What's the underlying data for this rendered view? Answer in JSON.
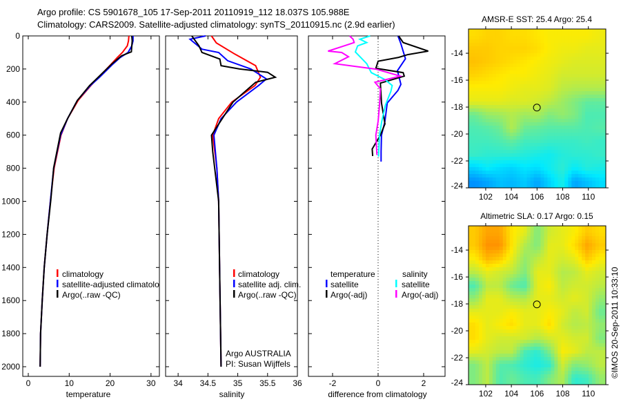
{
  "title": {
    "line1": "Argo profile: CS 5901678_105 17-Sep-2011 20110919_112 18.037S 105.988E",
    "line2": "Climatology: CARS2009. Satellite-adjusted climatology: synTS_20110915.nc (2.9d earlier)"
  },
  "credit": "©IMOS 20-Sep-2011 10:33:10",
  "colors": {
    "climatology": "#ff0000",
    "satellite": "#0000ff",
    "argo": "#000000",
    "sal_satellite": "#00ffff",
    "sal_argo": "#ff00ff"
  },
  "chart_data": [
    {
      "type": "line",
      "name": "temperature-profile",
      "xlabel": "temperature",
      "ylabel": "",
      "xlim": [
        -1.35,
        32.05
      ],
      "ylim": [
        0,
        2117
      ],
      "y_reversed": true,
      "xticks": [
        0,
        10,
        20,
        30
      ],
      "yticks": [
        0,
        200,
        400,
        600,
        800,
        1000,
        1200,
        1400,
        1600,
        1800,
        2000
      ],
      "legend": [
        "climatology",
        "satellite-adjusted climatology",
        "Argo(..raw -QC)"
      ],
      "series": [
        {
          "name": "climatology",
          "color": "climatology",
          "depth": [
            0,
            30,
            60,
            100,
            130,
            170,
            250,
            300,
            390,
            500,
            600,
            800,
            1000,
            1200,
            1400,
            1600,
            1800,
            2000
          ],
          "values": [
            24.6,
            24.5,
            24.2,
            23.0,
            21.8,
            20.3,
            17.2,
            15.3,
            12.2,
            9.6,
            8.0,
            6.3,
            5.4,
            4.6,
            3.9,
            3.4,
            3.0,
            2.9
          ]
        },
        {
          "name": "satellite-adjusted climatology",
          "color": "satellite",
          "depth": [
            0,
            30,
            60,
            100,
            130,
            170,
            250,
            300,
            390,
            500,
            600,
            800,
            1000,
            1200,
            1400,
            1600,
            1800,
            2000
          ],
          "values": [
            25.6,
            25.6,
            25.3,
            24.4,
            22.5,
            20.7,
            17.4,
            15.2,
            12.0,
            9.6,
            7.9,
            6.2,
            5.4,
            4.6,
            3.9,
            3.4,
            3.0,
            2.9
          ]
        },
        {
          "name": "Argo(..raw -QC)",
          "color": "argo",
          "depth": [
            0,
            30,
            60,
            96,
            120,
            168,
            252,
            300,
            390,
            500,
            587,
            797,
            994,
            1200,
            1400,
            1600,
            1800,
            2000
          ],
          "values": [
            25.3,
            25.4,
            25.3,
            25.2,
            22.8,
            20.5,
            17.0,
            15.0,
            12.0,
            9.6,
            7.9,
            6.2,
            5.5,
            4.6,
            3.9,
            3.4,
            3.0,
            2.9
          ]
        }
      ]
    },
    {
      "type": "line",
      "name": "salinity-profile",
      "xlabel": "salinity",
      "xlim": [
        33.79,
        36.0
      ],
      "ylim": [
        0,
        2117
      ],
      "y_reversed": true,
      "xticks": [
        34,
        34.5,
        35,
        35.5,
        36
      ],
      "legend": [
        "climatology",
        "satellite adj. clim.",
        "Argo(..raw -QC)"
      ],
      "annotations": [
        "Argo AUSTRALIA",
        "PI: Susan Wijffels"
      ],
      "series": [
        {
          "name": "climatology",
          "color": "climatology",
          "depth": [
            0,
            42,
            110,
            180,
            250,
            300,
            400,
            500,
            600,
            800,
            1000,
            1500,
            2000
          ],
          "values": [
            34.56,
            34.64,
            34.95,
            35.3,
            35.38,
            35.29,
            34.9,
            34.68,
            34.58,
            34.65,
            34.68,
            34.7,
            34.72
          ]
        },
        {
          "name": "satellite adj. clim.",
          "color": "satellite",
          "depth": [
            0,
            20,
            80,
            100,
            150,
            200,
            260,
            300,
            400,
            500,
            600,
            800,
            1000,
            1500,
            2000
          ],
          "values": [
            34.46,
            34.2,
            34.4,
            34.68,
            34.83,
            35.22,
            35.48,
            35.35,
            34.98,
            34.72,
            34.6,
            34.65,
            34.68,
            34.7,
            34.72
          ]
        },
        {
          "name": "Argo(..raw -QC)",
          "color": "argo",
          "depth": [
            0,
            60,
            100,
            140,
            180,
            200,
            220,
            250,
            280,
            400,
            600,
            700,
            1000,
            1500,
            2000
          ],
          "values": [
            34.23,
            34.35,
            34.4,
            34.7,
            34.72,
            35.03,
            35.5,
            35.63,
            35.3,
            34.92,
            34.56,
            34.58,
            34.68,
            34.7,
            34.72
          ]
        }
      ]
    },
    {
      "type": "line",
      "name": "difference-profile",
      "xlabel": "difference from climatology",
      "xlim": [
        -3.06,
        2.94
      ],
      "ylim": [
        0,
        2117
      ],
      "y_reversed": true,
      "xticks": [
        -2,
        0,
        2
      ],
      "zero_line": 0,
      "legend": {
        "temperature_title": "temperature",
        "salinity_title": "salinity",
        "entries": [
          "satellite",
          "Argo(-adj)",
          "satellite",
          "Argo(-adj)"
        ]
      },
      "series": [
        {
          "name": "temperature satellite",
          "color": "satellite",
          "depth": [
            0,
            42,
            138,
            210,
            293,
            330,
            406,
            516,
            600,
            700,
            760
          ],
          "values": [
            0.87,
            0.99,
            1.2,
            0.85,
            1.0,
            0.87,
            0.4,
            0.3,
            0.15,
            0.13,
            0.13
          ]
        },
        {
          "name": "temperature Argo(-adj)",
          "color": "argo",
          "depth": [
            0,
            40,
            92,
            113,
            130,
            153,
            196,
            222,
            243,
            285,
            406,
            532,
            600,
            684,
            726
          ],
          "values": [
            0.9,
            1.1,
            2.2,
            1.3,
            0.9,
            0.0,
            -0.1,
            1.1,
            1.15,
            0.1,
            0.15,
            0.3,
            0.1,
            -0.26,
            -0.24
          ]
        },
        {
          "name": "salinity satellite",
          "color": "sal_satellite",
          "depth": [
            0,
            20,
            40,
            60,
            97,
            168,
            222,
            264,
            300,
            335,
            419,
            516,
            600,
            730
          ],
          "values": [
            -0.35,
            -0.8,
            -0.5,
            -0.9,
            -1.0,
            -0.5,
            -0.3,
            0.3,
            0.62,
            0.56,
            0.32,
            0.16,
            0.06,
            0.02
          ]
        },
        {
          "name": "salinity Argo(-adj)",
          "color": "sal_argo",
          "depth": [
            0,
            20,
            40,
            63,
            92,
            100,
            126,
            168,
            201,
            243,
            280,
            320,
            419,
            516,
            600,
            720
          ],
          "values": [
            -1.25,
            -1.1,
            -1.05,
            -1.55,
            -2.2,
            -1.6,
            -1.3,
            -1.9,
            -0.1,
            0.97,
            -0.14,
            0.1,
            0.06,
            0.0,
            -0.1,
            -0.05
          ]
        }
      ]
    },
    {
      "type": "heatmap",
      "name": "sst-map",
      "title": "AMSR-E SST: 25.4 Argo: 25.4",
      "xlim": [
        100.66,
        111.36
      ],
      "ylim": [
        -24,
        -12.2
      ],
      "xticks": [
        102,
        104,
        106,
        108,
        110
      ],
      "yticks": [
        -14,
        -16,
        -18,
        -20,
        -22,
        -24
      ],
      "marker": {
        "lon": 105.988,
        "lat": -18.037
      },
      "colormap": "jet",
      "grid_normalized": [
        [
          0.64,
          0.65,
          0.65,
          0.64,
          0.64,
          0.63,
          0.62,
          0.62,
          0.62,
          0.62,
          0.61
        ],
        [
          0.66,
          0.66,
          0.65,
          0.65,
          0.65,
          0.64,
          0.62,
          0.61,
          0.61,
          0.6,
          0.6
        ],
        [
          0.67,
          0.66,
          0.65,
          0.64,
          0.63,
          0.62,
          0.61,
          0.6,
          0.59,
          0.59,
          0.59
        ],
        [
          0.65,
          0.64,
          0.63,
          0.62,
          0.62,
          0.61,
          0.6,
          0.58,
          0.58,
          0.58,
          0.58
        ],
        [
          0.62,
          0.62,
          0.62,
          0.61,
          0.6,
          0.6,
          0.59,
          0.56,
          0.55,
          0.55,
          0.55
        ],
        [
          0.6,
          0.6,
          0.6,
          0.59,
          0.59,
          0.58,
          0.56,
          0.53,
          0.5,
          0.47,
          0.47
        ],
        [
          0.48,
          0.52,
          0.53,
          0.55,
          0.53,
          0.54,
          0.5,
          0.52,
          0.5,
          0.45,
          0.45
        ],
        [
          0.45,
          0.46,
          0.48,
          0.55,
          0.48,
          0.47,
          0.46,
          0.46,
          0.46,
          0.45,
          0.46
        ],
        [
          0.44,
          0.44,
          0.45,
          0.47,
          0.44,
          0.44,
          0.43,
          0.43,
          0.43,
          0.44,
          0.43
        ],
        [
          0.43,
          0.42,
          0.42,
          0.42,
          0.41,
          0.4,
          0.39,
          0.41,
          0.42,
          0.42,
          0.43
        ],
        [
          0.35,
          0.38,
          0.36,
          0.35,
          0.37,
          0.36,
          0.39,
          0.42,
          0.38,
          0.41,
          0.4
        ],
        [
          0.28,
          0.3,
          0.33,
          0.32,
          0.34,
          0.3,
          0.35,
          0.4,
          0.3,
          0.33,
          0.36
        ]
      ]
    },
    {
      "type": "heatmap",
      "name": "sla-map",
      "title": "Altimetric SLA: 0.17 Argo: 0.15",
      "xlim": [
        100.66,
        111.36
      ],
      "ylim": [
        -24,
        -12.2
      ],
      "xticks": [
        102,
        104,
        106,
        108,
        110
      ],
      "yticks": [
        -14,
        -16,
        -18,
        -20,
        -22,
        -24
      ],
      "marker": {
        "lon": 105.988,
        "lat": -18.037
      },
      "colormap": "jet",
      "grid_normalized": [
        [
          0.66,
          0.7,
          0.7,
          0.63,
          0.6,
          0.5,
          0.58,
          0.6,
          0.62,
          0.66,
          0.64
        ],
        [
          0.66,
          0.72,
          0.72,
          0.63,
          0.55,
          0.5,
          0.6,
          0.6,
          0.64,
          0.7,
          0.66
        ],
        [
          0.62,
          0.68,
          0.66,
          0.6,
          0.52,
          0.56,
          0.6,
          0.58,
          0.6,
          0.66,
          0.62
        ],
        [
          0.56,
          0.6,
          0.58,
          0.56,
          0.5,
          0.6,
          0.6,
          0.55,
          0.56,
          0.6,
          0.58
        ],
        [
          0.45,
          0.56,
          0.56,
          0.48,
          0.45,
          0.6,
          0.62,
          0.56,
          0.58,
          0.58,
          0.56
        ],
        [
          0.52,
          0.6,
          0.6,
          0.56,
          0.55,
          0.6,
          0.6,
          0.58,
          0.6,
          0.58,
          0.52
        ],
        [
          0.6,
          0.6,
          0.6,
          0.62,
          0.6,
          0.6,
          0.62,
          0.6,
          0.56,
          0.58,
          0.48
        ],
        [
          0.64,
          0.6,
          0.62,
          0.64,
          0.6,
          0.6,
          0.64,
          0.58,
          0.55,
          0.56,
          0.52
        ],
        [
          0.64,
          0.6,
          0.58,
          0.58,
          0.58,
          0.55,
          0.58,
          0.6,
          0.58,
          0.58,
          0.5
        ],
        [
          0.6,
          0.58,
          0.56,
          0.56,
          0.45,
          0.42,
          0.5,
          0.62,
          0.6,
          0.56,
          0.56
        ],
        [
          0.5,
          0.56,
          0.46,
          0.45,
          0.42,
          0.4,
          0.42,
          0.58,
          0.5,
          0.52,
          0.56
        ],
        [
          0.5,
          0.56,
          0.45,
          0.48,
          0.45,
          0.44,
          0.5,
          0.55,
          0.42,
          0.44,
          0.52
        ]
      ]
    }
  ]
}
